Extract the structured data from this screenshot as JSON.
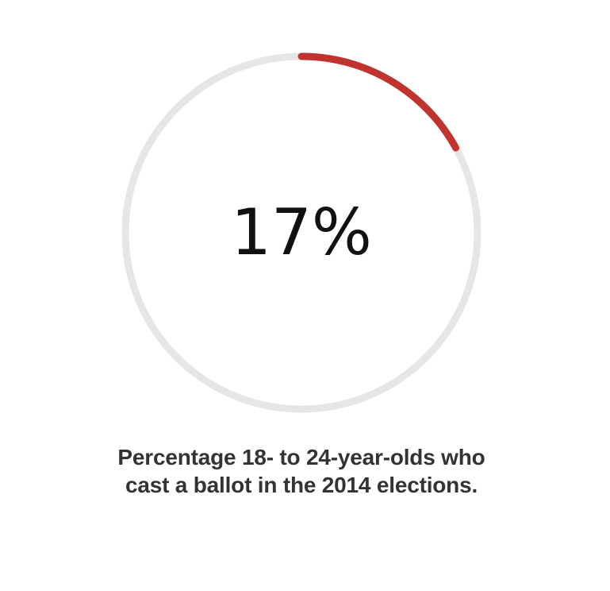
{
  "chart_data": {
    "type": "pie",
    "value": 17,
    "max": 100,
    "display_value": "17%",
    "caption": "Percentage 18- to 24-year-olds who cast a ballot in the 2014 elections."
  },
  "colors": {
    "track": "#e6e6e6",
    "progress": "#c0332f",
    "value_text": "#111111",
    "caption_text": "#333333"
  }
}
